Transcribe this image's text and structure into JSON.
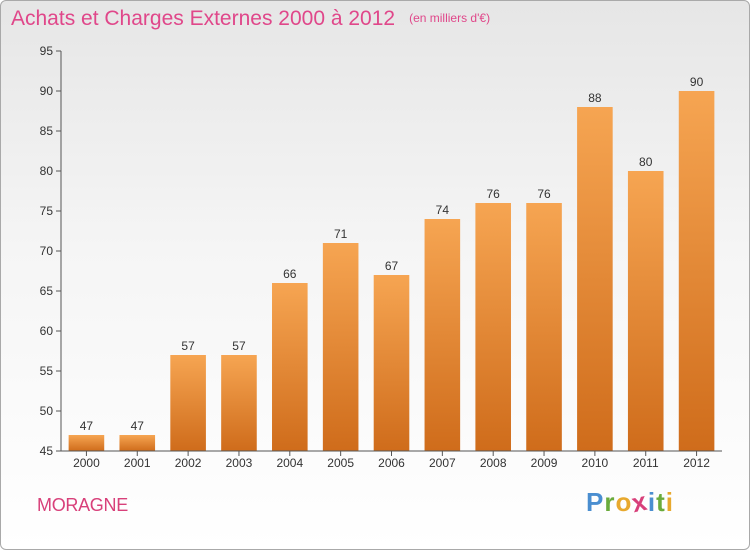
{
  "title": "Achats et Charges Externes 2000 à 2012",
  "subtitle": "(en milliers d'€)",
  "location": "MORAGNE",
  "brand": {
    "name": "Proxiti",
    "letters": [
      "P",
      "r",
      "o",
      "x",
      "i",
      "t",
      "i"
    ]
  },
  "colors": {
    "title": "#e0478a",
    "bar_top": "#f6a552",
    "bar_bottom": "#cf6c1b",
    "brand_letters": [
      "#4a8ed0",
      "#6aab3c",
      "#e8a92e",
      "#d8407a",
      "#4a8ed0",
      "#6aab3c",
      "#e8a92e"
    ]
  },
  "chart_data": {
    "type": "bar",
    "categories": [
      "2000",
      "2001",
      "2002",
      "2003",
      "2004",
      "2005",
      "2006",
      "2007",
      "2008",
      "2009",
      "2010",
      "2011",
      "2012"
    ],
    "values": [
      47,
      47,
      57,
      57,
      66,
      71,
      67,
      74,
      76,
      76,
      88,
      80,
      90
    ],
    "ylim": [
      45,
      95
    ],
    "yticks": [
      45,
      50,
      55,
      60,
      65,
      70,
      75,
      80,
      85,
      90,
      95
    ],
    "grid": false,
    "data_labels": true
  }
}
